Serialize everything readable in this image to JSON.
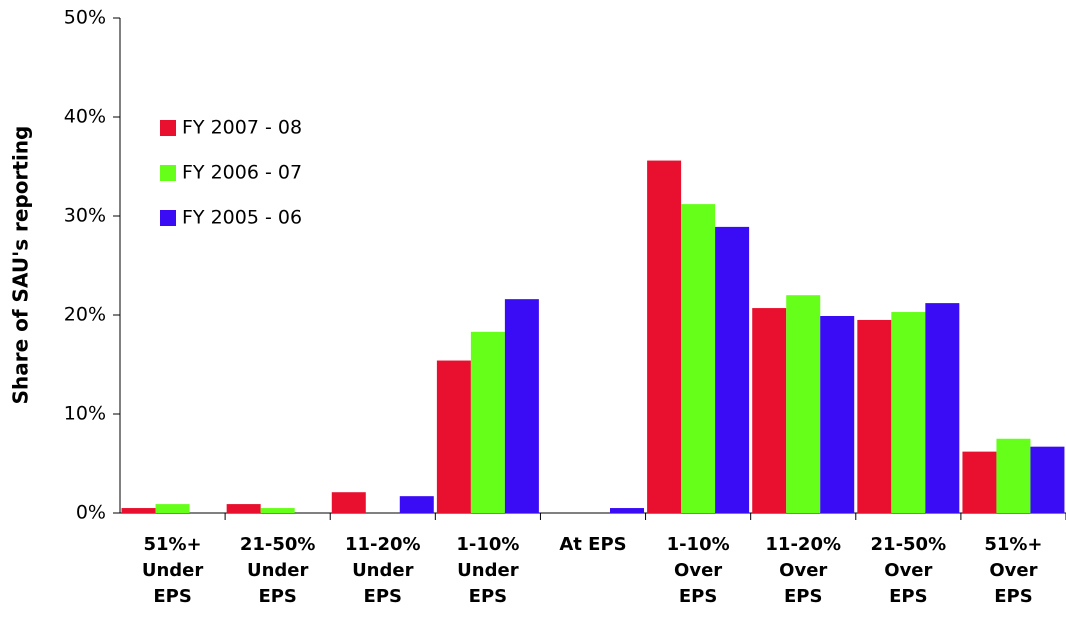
{
  "chart_data": {
    "type": "bar",
    "y_label": "Share of SAU's reporting",
    "categories": [
      "51%+\nUnder\nEPS",
      "21-50%\nUnder\nEPS",
      "11-20%\nUnder\nEPS",
      "1-10%\nUnder\nEPS",
      "At EPS",
      "1-10%\nOver\nEPS",
      "11-20%\nOver\nEPS",
      "21-50%\nOver\nEPS",
      "51%+\nOver\nEPS"
    ],
    "series": [
      {
        "name": "FY 2007 - 08",
        "color": "#e8102e",
        "values": [
          0.5,
          0.9,
          2.1,
          15.4,
          0,
          35.6,
          20.7,
          19.5,
          6.2
        ]
      },
      {
        "name": "FY 2006 - 07",
        "color": "#66ff1a",
        "values": [
          0.9,
          0.5,
          0,
          18.3,
          0,
          31.2,
          22.0,
          20.3,
          7.5
        ]
      },
      {
        "name": "FY 2005 - 06",
        "color": "#3a0cf5",
        "values": [
          0,
          0,
          1.7,
          21.6,
          0.5,
          28.9,
          19.9,
          21.2,
          6.7
        ]
      }
    ],
    "ylim": [
      0,
      50
    ],
    "yticks": [
      {
        "value": 0,
        "label": "0%"
      },
      {
        "value": 10,
        "label": "10%"
      },
      {
        "value": 20,
        "label": "20%"
      },
      {
        "value": 30,
        "label": "30%"
      },
      {
        "value": 40,
        "label": "40%"
      },
      {
        "value": 50,
        "label": "50%"
      }
    ],
    "legend": "upper-left"
  }
}
